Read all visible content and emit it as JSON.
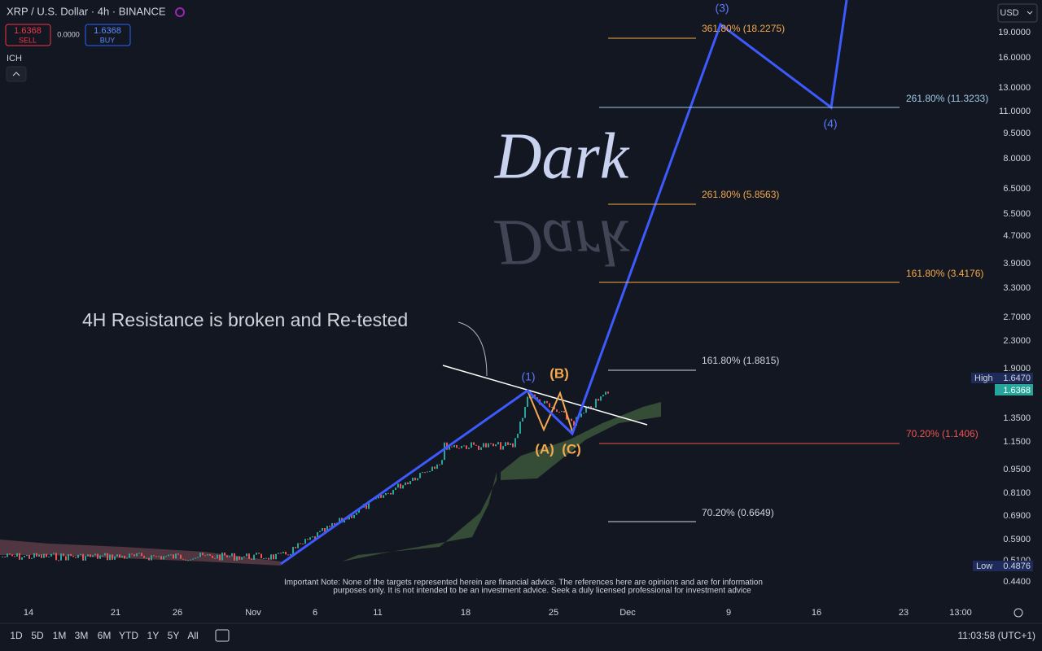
{
  "header": {
    "symbol": "XRP / U.S. Dollar · 4h · BINANCE",
    "sell_price": "1.6368",
    "sell": "SELL",
    "spread": "0.0000",
    "buy_price": "1.6368",
    "buy": "BUY",
    "indicator": "ICH",
    "currency": "USD"
  },
  "price_axis": [
    "19.0000",
    "16.0000",
    "13.0000",
    "11.0000",
    "9.5000",
    "8.0000",
    "6.5000",
    "5.5000",
    "4.7000",
    "3.9000",
    "3.3000",
    "2.7000",
    "2.3000",
    "1.9000",
    "1.3500",
    "1.1500",
    "0.9500",
    "0.8100",
    "0.6900",
    "0.5900",
    "0.5100",
    "0.4400"
  ],
  "price_badges": {
    "high_label": "High",
    "high": "1.6470",
    "last": "1.6368",
    "low_label": "Low",
    "low": "0.4876"
  },
  "time_axis": [
    "14",
    "21",
    "26",
    "Nov",
    "6",
    "11",
    "18",
    "25",
    "Dec",
    "9",
    "16",
    "23",
    "13:00"
  ],
  "annotations": {
    "watermark": "Dark",
    "resistance_note": "4H Resistance is broken and Re-tested",
    "waves": [
      "(1)",
      "(3)",
      "(4)",
      "(B)",
      "(A)",
      "(C)"
    ],
    "fib_levels": [
      "361.80% (18.2275)",
      "261.80% (11.3233)",
      "261.80% (5.8563)",
      "161.80% (3.4176)",
      "161.80% (1.8815)",
      "70.20% (1.1406)",
      "70.20% (0.6649)"
    ],
    "disclaimer": [
      "Important Note: None of the targets represented herein are financial advice. The references here are opinions and are for information",
      "purposes only. It is not intended to be an investment advice. Seek a duly licensed professional for investment advice"
    ]
  },
  "footer": {
    "ranges": [
      "1D",
      "5D",
      "1M",
      "3M",
      "6M",
      "YTD",
      "1Y",
      "5Y",
      "All"
    ],
    "clock": "11:03:58 (UTC+1)"
  }
}
